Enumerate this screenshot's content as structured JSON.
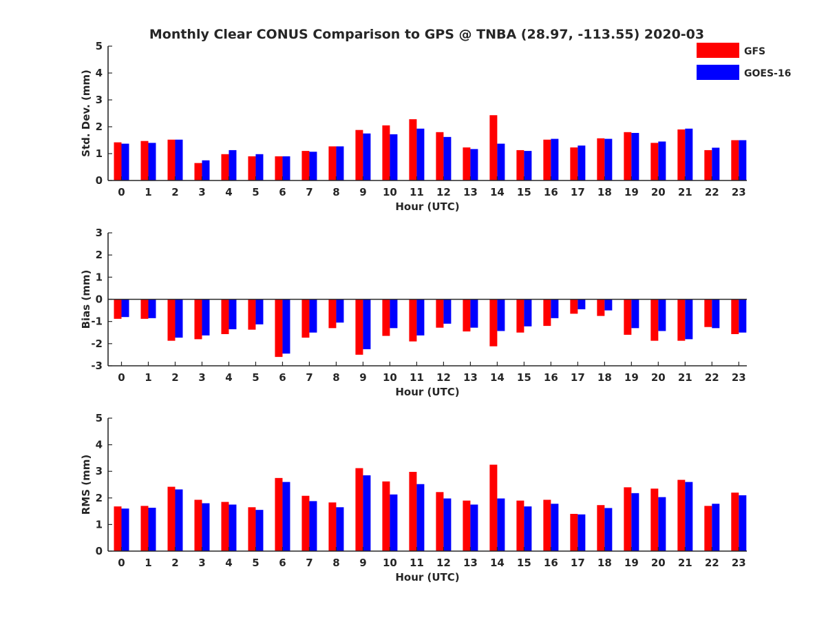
{
  "chart_data": {
    "type": "bar",
    "title": "Monthly Clear CONUS Comparison to GPS @ TNBA (28.97, -113.55) 2020-03",
    "legend": {
      "placement": "top-right",
      "entries": [
        "GFS",
        "GOES-16"
      ]
    },
    "colors": {
      "GFS": "#ff0000",
      "GOES-16": "#0000ff",
      "axis": "#262626"
    },
    "categories": [
      "0",
      "1",
      "2",
      "3",
      "4",
      "5",
      "6",
      "7",
      "8",
      "9",
      "10",
      "11",
      "12",
      "13",
      "14",
      "15",
      "16",
      "17",
      "18",
      "19",
      "20",
      "21",
      "22",
      "23"
    ],
    "panels": [
      {
        "id": "stddev",
        "xlabel": "Hour (UTC)",
        "ylabel": "Std. Dev. (mm)",
        "ylim": [
          0,
          5
        ],
        "yticks": [
          0,
          1,
          2,
          3,
          4,
          5
        ],
        "series": [
          {
            "name": "GFS",
            "values": [
              1.42,
              1.47,
              1.52,
              0.65,
              0.98,
              0.9,
              0.9,
              1.1,
              1.27,
              1.88,
              2.05,
              2.28,
              1.8,
              1.23,
              2.43,
              1.13,
              1.52,
              1.23,
              1.57,
              1.8,
              1.4,
              1.9,
              1.13,
              1.5
            ]
          },
          {
            "name": "GOES-16",
            "values": [
              1.37,
              1.4,
              1.52,
              0.75,
              1.13,
              0.98,
              0.9,
              1.07,
              1.27,
              1.75,
              1.72,
              1.93,
              1.62,
              1.17,
              1.37,
              1.1,
              1.55,
              1.3,
              1.55,
              1.77,
              1.45,
              1.93,
              1.22,
              1.5
            ]
          }
        ]
      },
      {
        "id": "bias",
        "xlabel": "Hour (UTC)",
        "ylabel": "Bias (mm)",
        "ylim": [
          -3,
          3
        ],
        "yticks": [
          -3,
          -2,
          -1,
          0,
          1,
          2,
          3
        ],
        "series": [
          {
            "name": "GFS",
            "values": [
              -0.88,
              -0.88,
              -1.87,
              -1.8,
              -1.57,
              -1.37,
              -2.6,
              -1.73,
              -1.3,
              -2.5,
              -1.65,
              -1.9,
              -1.28,
              -1.45,
              -2.12,
              -1.5,
              -1.2,
              -0.65,
              -0.75,
              -1.6,
              -1.87,
              -1.87,
              -1.25,
              -1.57
            ]
          },
          {
            "name": "GOES-16",
            "values": [
              -0.8,
              -0.85,
              -1.73,
              -1.63,
              -1.35,
              -1.13,
              -2.45,
              -1.5,
              -1.05,
              -2.25,
              -1.3,
              -1.63,
              -1.1,
              -1.28,
              -1.43,
              -1.22,
              -0.85,
              -0.45,
              -0.5,
              -1.3,
              -1.43,
              -1.8,
              -1.3,
              -1.5
            ]
          }
        ]
      },
      {
        "id": "rms",
        "xlabel": "Hour (UTC)",
        "ylabel": "RMS (mm)",
        "ylim": [
          0,
          5
        ],
        "yticks": [
          0,
          1,
          2,
          3,
          4,
          5
        ],
        "series": [
          {
            "name": "GFS",
            "values": [
              1.68,
              1.7,
              2.42,
              1.93,
              1.85,
              1.65,
              2.75,
              2.08,
              1.83,
              3.12,
              2.62,
              2.98,
              2.22,
              1.9,
              3.25,
              1.9,
              1.93,
              1.4,
              1.73,
              2.4,
              2.35,
              2.68,
              1.7,
              2.2
            ]
          },
          {
            "name": "GOES-16",
            "values": [
              1.6,
              1.63,
              2.32,
              1.8,
              1.75,
              1.55,
              2.6,
              1.88,
              1.65,
              2.85,
              2.13,
              2.52,
              1.98,
              1.75,
              1.98,
              1.68,
              1.78,
              1.38,
              1.62,
              2.18,
              2.03,
              2.6,
              1.78,
              2.1
            ]
          }
        ]
      }
    ]
  }
}
